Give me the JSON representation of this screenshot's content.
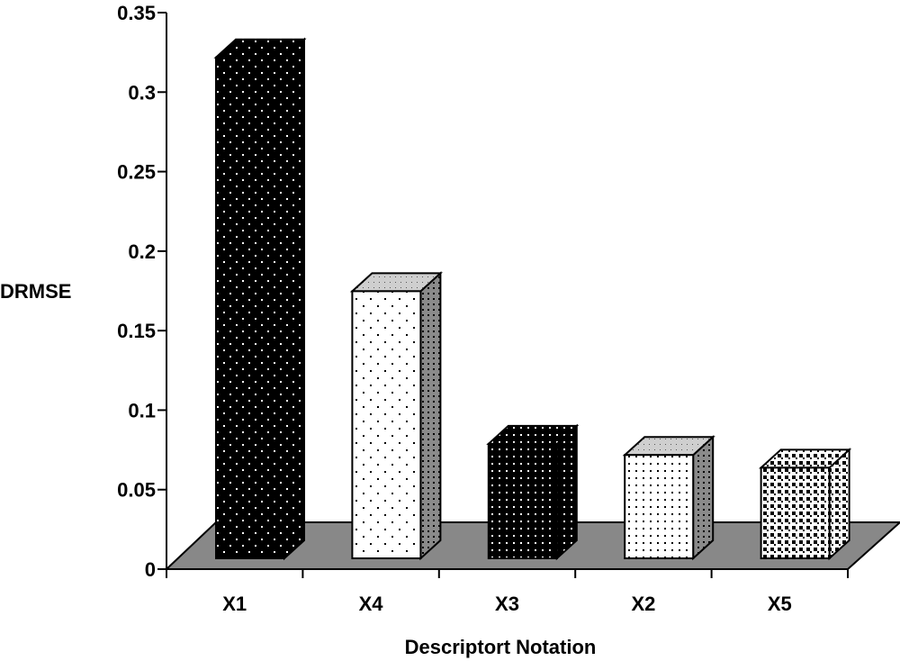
{
  "chart_data": {
    "type": "bar",
    "style": "3d-column",
    "categories": [
      "X1",
      "X4",
      "X3",
      "X2",
      "X5"
    ],
    "values": [
      0.315,
      0.168,
      0.072,
      0.065,
      0.057
    ],
    "xlabel": "Descriptort Notation",
    "ylabel": "DRMSE",
    "ylim": [
      0,
      0.35
    ],
    "yticks": [
      "0",
      "0.05",
      "0.1",
      "0.15",
      "0.2",
      "0.25",
      "0.3",
      "0.35"
    ],
    "grid": false,
    "legend": "none",
    "floor_color": "#888888"
  }
}
